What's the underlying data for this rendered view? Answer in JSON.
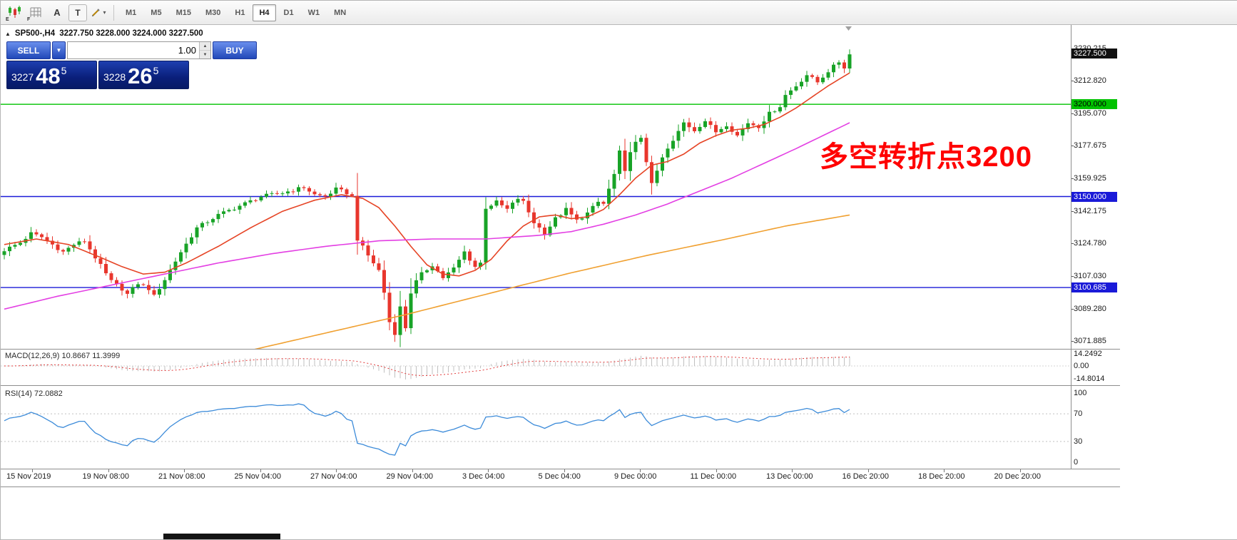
{
  "toolbar": {
    "icons": [
      {
        "name": "candlestick-chart",
        "label": "E"
      },
      {
        "name": "grid",
        "label": "F"
      },
      {
        "name": "arrange-a",
        "label": "A"
      },
      {
        "name": "text-tool",
        "label": "T"
      },
      {
        "name": "draw-tool-caret",
        "label": "▾"
      }
    ],
    "timeframes": [
      {
        "label": "M1",
        "active": false
      },
      {
        "label": "M5",
        "active": false
      },
      {
        "label": "M15",
        "active": false
      },
      {
        "label": "M30",
        "active": false
      },
      {
        "label": "H1",
        "active": false
      },
      {
        "label": "H4",
        "active": true
      },
      {
        "label": "D1",
        "active": false
      },
      {
        "label": "W1",
        "active": false
      },
      {
        "label": "MN",
        "active": false
      }
    ]
  },
  "chart_header": {
    "collapse_icon": "▲",
    "symbol_tf": "SP500-,H4",
    "ohlc": "3227.750 3228.000 3224.000 3227.500"
  },
  "trade_panel": {
    "sell_label": "SELL",
    "buy_label": "BUY",
    "volume": "1.00",
    "dropdown_icon": "▼",
    "spin_up_icon": "▲",
    "spin_down_icon": "▼",
    "sell_price": {
      "big_figure": "3227",
      "pips": "48",
      "pipette": "5"
    },
    "buy_price": {
      "big_figure": "3228",
      "pips": "26",
      "pipette": "5"
    }
  },
  "annotation": {
    "text": "多空转折点3200",
    "color": "#FF0000"
  },
  "chart_data": {
    "type": "candlestick",
    "symbol": "SP500-",
    "timeframe": "H4",
    "ohlc_display": {
      "open": "3227.750",
      "high": "3228.000",
      "low": "3224.000",
      "close": "3227.500"
    },
    "price_axis": {
      "ticks": [
        3230.215,
        3212.82,
        3195.07,
        3177.675,
        3159.925,
        3142.175,
        3124.78,
        3107.03,
        3089.28,
        3071.885
      ],
      "current_price": 3227.5,
      "current_badge_bg": "#111111",
      "current_badge_text": "#ffffff"
    },
    "hlines": [
      {
        "price": 3200.0,
        "label": "3200.000",
        "color": "#00C200",
        "text_color": "#000000"
      },
      {
        "price": 3150.0,
        "label": "3150.000",
        "color": "#1A1AD8",
        "text_color": "#ffffff"
      },
      {
        "price": 3100.685,
        "label": "3100.685",
        "color": "#1A1AD8",
        "text_color": "#ffffff"
      }
    ],
    "time_labels": [
      "15 Nov 2019",
      "19 Nov 08:00",
      "21 Nov 08:00",
      "25 Nov 04:00",
      "27 Nov 04:00",
      "29 Nov 04:00",
      "3 Dec 04:00",
      "5 Dec 04:00",
      "9 Dec 00:00",
      "11 Dec 00:00",
      "13 Dec 00:00",
      "16 Dec 20:00",
      "18 Dec 20:00",
      "20 Dec 20:00"
    ],
    "candles": {
      "count": 159,
      "bull_color": "#18A327",
      "bear_color": "#E8362D",
      "close_anchors": [
        [
          0,
          3121
        ],
        [
          3,
          3125
        ],
        [
          5,
          3130
        ],
        [
          7,
          3128
        ],
        [
          9,
          3124
        ],
        [
          11,
          3120
        ],
        [
          13,
          3124
        ],
        [
          15,
          3126
        ],
        [
          17,
          3117
        ],
        [
          19,
          3108
        ],
        [
          20,
          3104
        ],
        [
          22,
          3100
        ],
        [
          23,
          3097
        ],
        [
          25,
          3103
        ],
        [
          27,
          3100
        ],
        [
          28,
          3096
        ],
        [
          30,
          3105
        ],
        [
          32,
          3115
        ],
        [
          33,
          3120
        ],
        [
          36,
          3133
        ],
        [
          40,
          3140
        ],
        [
          44,
          3145
        ],
        [
          48,
          3150
        ],
        [
          52,
          3152
        ],
        [
          56,
          3155
        ],
        [
          58,
          3151
        ],
        [
          60,
          3150
        ],
        [
          62,
          3154
        ],
        [
          64,
          3152
        ],
        [
          65,
          3150
        ],
        [
          66,
          3127
        ],
        [
          68,
          3118
        ],
        [
          70,
          3110
        ],
        [
          71,
          3098
        ],
        [
          72,
          3082
        ],
        [
          73,
          3076
        ],
        [
          74,
          3090
        ],
        [
          75,
          3079
        ],
        [
          76,
          3098
        ],
        [
          77,
          3104
        ],
        [
          78,
          3108
        ],
        [
          80,
          3113
        ],
        [
          82,
          3106
        ],
        [
          84,
          3111
        ],
        [
          86,
          3120
        ],
        [
          88,
          3112
        ],
        [
          89,
          3114
        ],
        [
          90,
          3144
        ],
        [
          92,
          3147
        ],
        [
          94,
          3143
        ],
        [
          96,
          3149
        ],
        [
          97,
          3147
        ],
        [
          99,
          3136
        ],
        [
          101,
          3130
        ],
        [
          103,
          3138
        ],
        [
          105,
          3143
        ],
        [
          107,
          3137
        ],
        [
          109,
          3141
        ],
        [
          111,
          3147
        ],
        [
          112,
          3146
        ],
        [
          114,
          3162
        ],
        [
          115,
          3174
        ],
        [
          116,
          3163
        ],
        [
          117,
          3175
        ],
        [
          118,
          3179
        ],
        [
          119,
          3181
        ],
        [
          120,
          3169
        ],
        [
          121,
          3158
        ],
        [
          122,
          3163
        ],
        [
          123,
          3171
        ],
        [
          125,
          3180
        ],
        [
          127,
          3190
        ],
        [
          129,
          3186
        ],
        [
          131,
          3191
        ],
        [
          133,
          3185
        ],
        [
          135,
          3189
        ],
        [
          137,
          3183
        ],
        [
          139,
          3190
        ],
        [
          141,
          3188
        ],
        [
          143,
          3195
        ],
        [
          145,
          3199
        ],
        [
          146,
          3205
        ],
        [
          148,
          3210
        ],
        [
          150,
          3216
        ],
        [
          152,
          3212
        ],
        [
          154,
          3218
        ],
        [
          156,
          3223
        ],
        [
          157,
          3220
        ],
        [
          158,
          3227
        ]
      ]
    },
    "moving_averages": [
      {
        "name": "fast-ma",
        "color": "#E64425",
        "anchors": [
          [
            0,
            3124
          ],
          [
            6,
            3127
          ],
          [
            12,
            3124
          ],
          [
            18,
            3117
          ],
          [
            22,
            3112
          ],
          [
            26,
            3108
          ],
          [
            30,
            3109
          ],
          [
            34,
            3114
          ],
          [
            40,
            3123
          ],
          [
            46,
            3133
          ],
          [
            52,
            3142
          ],
          [
            58,
            3148
          ],
          [
            63,
            3151
          ],
          [
            67,
            3149
          ],
          [
            70,
            3144
          ],
          [
            73,
            3134
          ],
          [
            76,
            3123
          ],
          [
            79,
            3113
          ],
          [
            82,
            3108
          ],
          [
            85,
            3107
          ],
          [
            88,
            3110
          ],
          [
            91,
            3116
          ],
          [
            94,
            3126
          ],
          [
            97,
            3134
          ],
          [
            100,
            3139
          ],
          [
            103,
            3140
          ],
          [
            106,
            3138
          ],
          [
            109,
            3139
          ],
          [
            112,
            3143
          ],
          [
            115,
            3151
          ],
          [
            118,
            3160
          ],
          [
            121,
            3167
          ],
          [
            124,
            3169
          ],
          [
            127,
            3173
          ],
          [
            130,
            3179
          ],
          [
            133,
            3183
          ],
          [
            136,
            3186
          ],
          [
            139,
            3187
          ],
          [
            142,
            3189
          ],
          [
            145,
            3193
          ],
          [
            148,
            3198
          ],
          [
            151,
            3204
          ],
          [
            154,
            3210
          ],
          [
            158,
            3217
          ]
        ]
      },
      {
        "name": "medium-ma",
        "color": "#E33FE3",
        "anchors": [
          [
            0,
            3089
          ],
          [
            10,
            3096
          ],
          [
            20,
            3102
          ],
          [
            30,
            3108
          ],
          [
            40,
            3114
          ],
          [
            50,
            3119
          ],
          [
            60,
            3123
          ],
          [
            70,
            3126
          ],
          [
            80,
            3127
          ],
          [
            90,
            3127
          ],
          [
            100,
            3129
          ],
          [
            106,
            3131
          ],
          [
            112,
            3135
          ],
          [
            118,
            3140
          ],
          [
            124,
            3146
          ],
          [
            130,
            3153
          ],
          [
            136,
            3160
          ],
          [
            142,
            3168
          ],
          [
            148,
            3176
          ],
          [
            153,
            3183
          ],
          [
            158,
            3190
          ]
        ]
      },
      {
        "name": "slow-ma",
        "color": "#F0A030",
        "anchors": [
          [
            0,
            3036
          ],
          [
            15,
            3046
          ],
          [
            30,
            3056
          ],
          [
            45,
            3066
          ],
          [
            60,
            3076
          ],
          [
            75,
            3086
          ],
          [
            90,
            3097
          ],
          [
            105,
            3108
          ],
          [
            120,
            3118
          ],
          [
            135,
            3127
          ],
          [
            146,
            3134
          ],
          [
            158,
            3140
          ]
        ]
      }
    ],
    "macd": {
      "label": "MACD(12,26,9) 10.8667 11.3999",
      "params": [
        12,
        26,
        9
      ],
      "value_main": 10.8667,
      "value_signal": 11.3999,
      "axis_values": [
        "14.2492",
        "0.00",
        "-14.8014"
      ],
      "hist_color": "#C0C0C0",
      "signal_color": "#E23B3B"
    },
    "rsi": {
      "label": "RSI(14) 72.0882",
      "period": 14,
      "value": 72.0882,
      "axis_values": [
        "100",
        "70",
        "30",
        "0"
      ],
      "levels": [
        70,
        30
      ],
      "line_color": "#3C8BD9",
      "level_color": "#C0C0C0"
    }
  }
}
